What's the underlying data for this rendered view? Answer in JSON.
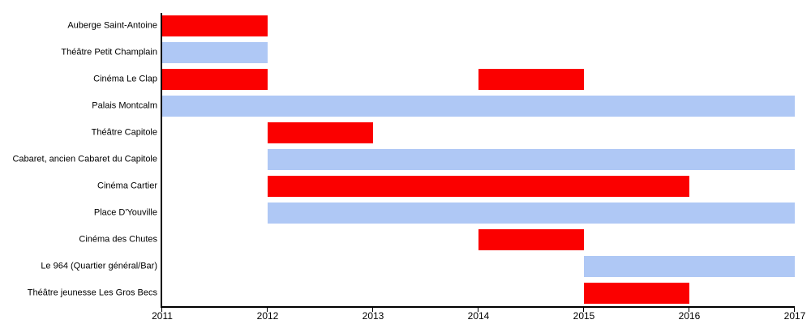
{
  "chart_data": {
    "type": "bar",
    "subtype": "gantt-timeline",
    "title": "",
    "xlabel": "",
    "ylabel": "",
    "grid": false,
    "legend": "none",
    "x_axis": {
      "min": 2011,
      "max": 2017,
      "ticks": [
        2011,
        2012,
        2013,
        2014,
        2015,
        2016,
        2017
      ]
    },
    "colors": {
      "red": "#fb0000",
      "blue": "#afc8f5"
    },
    "rows": [
      {
        "label": "Auberge Saint-Antoine",
        "segments": [
          {
            "start": 2011,
            "end": 2012,
            "color": "red"
          }
        ]
      },
      {
        "label": "Théâtre Petit Champlain",
        "segments": [
          {
            "start": 2011,
            "end": 2012,
            "color": "blue"
          }
        ]
      },
      {
        "label": "Cinéma Le Clap",
        "segments": [
          {
            "start": 2011,
            "end": 2012,
            "color": "red"
          },
          {
            "start": 2014,
            "end": 2015,
            "color": "red"
          }
        ]
      },
      {
        "label": "Palais Montcalm",
        "segments": [
          {
            "start": 2011,
            "end": 2017,
            "color": "blue"
          }
        ]
      },
      {
        "label": "Théâtre Capitole",
        "segments": [
          {
            "start": 2012,
            "end": 2013,
            "color": "red"
          }
        ]
      },
      {
        "label": "Cabaret, ancien Cabaret du Capitole",
        "segments": [
          {
            "start": 2012,
            "end": 2017,
            "color": "blue"
          }
        ]
      },
      {
        "label": "Cinéma Cartier",
        "segments": [
          {
            "start": 2012,
            "end": 2016,
            "color": "red"
          }
        ]
      },
      {
        "label": "Place D'Youville",
        "segments": [
          {
            "start": 2012,
            "end": 2017,
            "color": "blue"
          }
        ]
      },
      {
        "label": "Cinéma des Chutes",
        "segments": [
          {
            "start": 2014,
            "end": 2015,
            "color": "red"
          }
        ]
      },
      {
        "label": "Le 964 (Quartier général/Bar)",
        "segments": [
          {
            "start": 2015,
            "end": 2017,
            "color": "blue"
          }
        ]
      },
      {
        "label": "Théâtre jeunesse Les Gros Becs",
        "segments": [
          {
            "start": 2015,
            "end": 2016,
            "color": "red"
          }
        ]
      }
    ]
  }
}
